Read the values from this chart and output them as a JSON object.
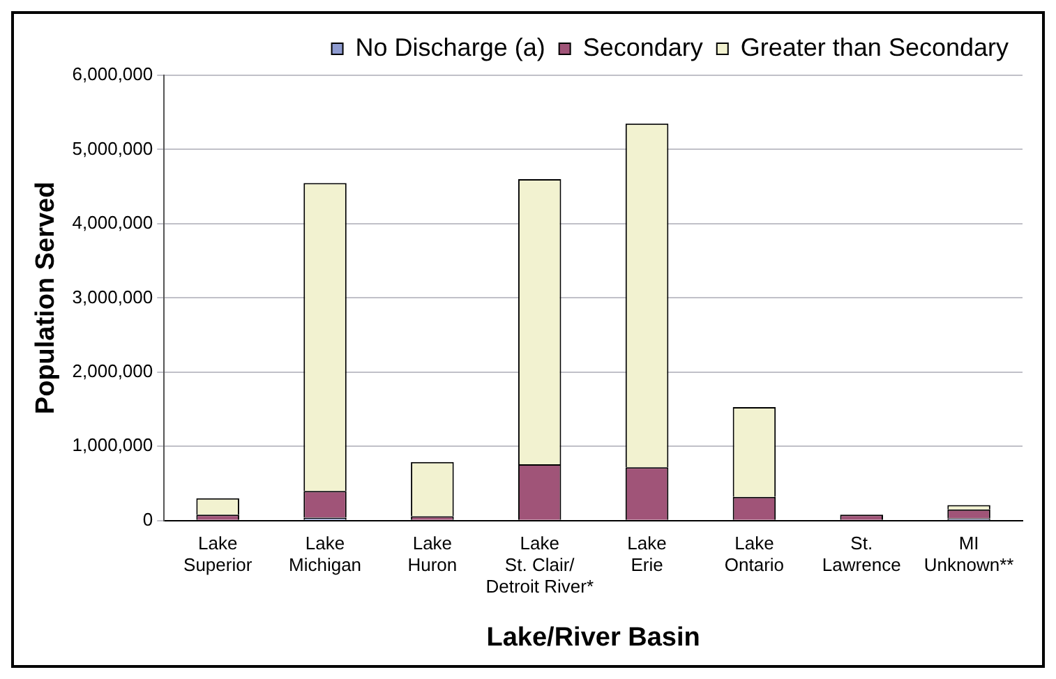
{
  "chart_data": {
    "type": "bar",
    "stacked": true,
    "xlabel": "Lake/River Basin",
    "ylabel": "Population Served",
    "categories": [
      "Lake\nSuperior",
      "Lake\nMichigan",
      "Lake\nHuron",
      "Lake\nSt. Clair/\nDetroit River*",
      "Lake\nErie",
      "Lake\nOntario",
      "St.\nLawrence",
      "MI\nUnknown**"
    ],
    "series": [
      {
        "name": "No Discharge (a)",
        "color": "#8e9bd0",
        "values": [
          0,
          40000,
          0,
          0,
          0,
          0,
          0,
          30000
        ]
      },
      {
        "name": "Secondary",
        "color": "#a05478",
        "values": [
          80000,
          360000,
          60000,
          760000,
          720000,
          320000,
          80000,
          120000
        ]
      },
      {
        "name": "Greater than Secondary",
        "color": "#f2f2d0",
        "values": [
          220000,
          4150000,
          730000,
          3840000,
          4630000,
          1210000,
          null,
          60000
        ]
      }
    ],
    "ylim": [
      0,
      6000000
    ],
    "yticks": [
      {
        "value": 0,
        "label": "0"
      },
      {
        "value": 1000000,
        "label": "1,000,000"
      },
      {
        "value": 2000000,
        "label": "2,000,000"
      },
      {
        "value": 3000000,
        "label": "3,000,000"
      },
      {
        "value": 4000000,
        "label": "4,000,000"
      },
      {
        "value": 5000000,
        "label": "5,000,000"
      },
      {
        "value": 6000000,
        "label": "6,000,000"
      }
    ],
    "grid": "y",
    "legend": "top"
  }
}
